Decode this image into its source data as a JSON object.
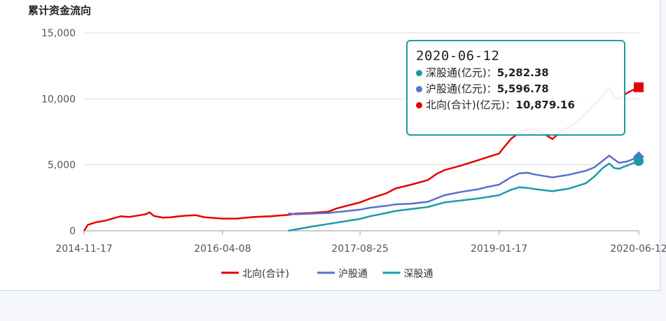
{
  "title": "累计资金流向",
  "tooltip": {
    "date": "2020-06-12",
    "rows": [
      {
        "label": "深股通(亿元)：",
        "value": "5,282.38",
        "color": "#1b9aaa"
      },
      {
        "label": "沪股通(亿元)：",
        "value": "5,596.78",
        "color": "#5b6fce"
      },
      {
        "label": "北向(合计)(亿元)：",
        "value": "10,879.16",
        "color": "#e50000"
      }
    ]
  },
  "colors": {
    "north": "#e50000",
    "sh": "#5b6fce",
    "sz": "#1b9aaa",
    "grid": "#dcdcdc",
    "axis": "#999999"
  },
  "chart_data": {
    "type": "line",
    "title": "累计资金流向",
    "x_ticks": [
      "2014-11-17",
      "2016-04-08",
      "2017-08-25",
      "2019-01-17",
      "2020-06-12"
    ],
    "y_ticks": [
      "0",
      "5,000",
      "10,000",
      "15,000"
    ],
    "ylim": [
      0,
      15000
    ],
    "xlim": [
      "2014-11-17",
      "2020-06-12"
    ],
    "grid": true,
    "legend_position": "bottom",
    "series": [
      {
        "name": "北向(合计)",
        "points": [
          [
            "2014-11-17",
            0
          ],
          [
            "2014-12-01",
            450
          ],
          [
            "2015-01-01",
            650
          ],
          [
            "2015-02-01",
            760
          ],
          [
            "2015-03-01",
            920
          ],
          [
            "2015-04-01",
            1100
          ],
          [
            "2015-05-01",
            1050
          ],
          [
            "2015-06-01",
            1150
          ],
          [
            "2015-07-01",
            1250
          ],
          [
            "2015-07-15",
            1400
          ],
          [
            "2015-08-01",
            1120
          ],
          [
            "2015-09-01",
            1000
          ],
          [
            "2015-10-01",
            1020
          ],
          [
            "2015-11-01",
            1100
          ],
          [
            "2015-12-01",
            1150
          ],
          [
            "2016-01-01",
            1180
          ],
          [
            "2016-02-01",
            1030
          ],
          [
            "2016-04-08",
            920
          ],
          [
            "2016-06-01",
            930
          ],
          [
            "2016-08-01",
            1050
          ],
          [
            "2016-10-01",
            1100
          ],
          [
            "2016-12-01",
            1200
          ],
          [
            "2017-01-01",
            1300
          ],
          [
            "2017-03-01",
            1350
          ],
          [
            "2017-05-01",
            1450
          ],
          [
            "2017-06-01",
            1700
          ],
          [
            "2017-08-25",
            2150
          ],
          [
            "2017-10-01",
            2450
          ],
          [
            "2017-12-01",
            2850
          ],
          [
            "2018-01-01",
            3200
          ],
          [
            "2018-03-01",
            3500
          ],
          [
            "2018-05-01",
            3850
          ],
          [
            "2018-06-01",
            4300
          ],
          [
            "2018-07-01",
            4600
          ],
          [
            "2018-09-01",
            4950
          ],
          [
            "2018-11-01",
            5350
          ],
          [
            "2018-12-01",
            5550
          ],
          [
            "2019-01-17",
            5850
          ],
          [
            "2019-02-01",
            6250
          ],
          [
            "2019-03-01",
            6950
          ],
          [
            "2019-04-01",
            7450
          ],
          [
            "2019-05-01",
            7700
          ],
          [
            "2019-06-01",
            7650
          ],
          [
            "2019-07-01",
            7350
          ],
          [
            "2019-08-01",
            6950
          ],
          [
            "2019-09-01",
            7550
          ],
          [
            "2019-10-01",
            7900
          ],
          [
            "2019-11-01",
            8250
          ],
          [
            "2019-12-01",
            8850
          ],
          [
            "2020-01-01",
            9550
          ],
          [
            "2020-02-01",
            10200
          ],
          [
            "2020-02-25",
            10850
          ],
          [
            "2020-03-15",
            10150
          ],
          [
            "2020-04-01",
            10000
          ],
          [
            "2020-05-01",
            10450
          ],
          [
            "2020-06-12",
            10879.16
          ]
        ]
      },
      {
        "name": "沪股通",
        "points": [
          [
            "2016-12-05",
            1320
          ],
          [
            "2017-01-01",
            1250
          ],
          [
            "2017-03-01",
            1300
          ],
          [
            "2017-05-01",
            1350
          ],
          [
            "2017-08-25",
            1600
          ],
          [
            "2017-10-01",
            1750
          ],
          [
            "2017-12-01",
            1900
          ],
          [
            "2018-01-01",
            2000
          ],
          [
            "2018-03-01",
            2050
          ],
          [
            "2018-05-01",
            2200
          ],
          [
            "2018-07-01",
            2700
          ],
          [
            "2018-09-01",
            2950
          ],
          [
            "2018-11-01",
            3150
          ],
          [
            "2018-12-01",
            3300
          ],
          [
            "2019-01-17",
            3500
          ],
          [
            "2019-03-01",
            4050
          ],
          [
            "2019-04-01",
            4350
          ],
          [
            "2019-05-01",
            4400
          ],
          [
            "2019-06-01",
            4250
          ],
          [
            "2019-08-01",
            4050
          ],
          [
            "2019-10-01",
            4250
          ],
          [
            "2019-12-01",
            4550
          ],
          [
            "2020-01-01",
            4800
          ],
          [
            "2020-02-01",
            5300
          ],
          [
            "2020-02-25",
            5700
          ],
          [
            "2020-03-15",
            5400
          ],
          [
            "2020-04-01",
            5150
          ],
          [
            "2020-05-01",
            5250
          ],
          [
            "2020-06-12",
            5596.78
          ]
        ]
      },
      {
        "name": "深股通",
        "points": [
          [
            "2016-12-05",
            0
          ],
          [
            "2017-03-01",
            320
          ],
          [
            "2017-05-01",
            520
          ],
          [
            "2017-08-25",
            900
          ],
          [
            "2017-10-01",
            1100
          ],
          [
            "2017-12-01",
            1350
          ],
          [
            "2018-01-01",
            1500
          ],
          [
            "2018-03-01",
            1650
          ],
          [
            "2018-05-01",
            1800
          ],
          [
            "2018-07-01",
            2150
          ],
          [
            "2018-09-01",
            2300
          ],
          [
            "2018-11-01",
            2450
          ],
          [
            "2019-01-17",
            2700
          ],
          [
            "2019-03-01",
            3100
          ],
          [
            "2019-04-01",
            3300
          ],
          [
            "2019-05-01",
            3250
          ],
          [
            "2019-06-01",
            3150
          ],
          [
            "2019-08-01",
            3000
          ],
          [
            "2019-10-01",
            3200
          ],
          [
            "2019-12-01",
            3600
          ],
          [
            "2020-01-01",
            4100
          ],
          [
            "2020-02-01",
            4750
          ],
          [
            "2020-02-25",
            5100
          ],
          [
            "2020-03-15",
            4750
          ],
          [
            "2020-04-01",
            4700
          ],
          [
            "2020-05-01",
            4950
          ],
          [
            "2020-06-12",
            5282.38
          ]
        ]
      }
    ],
    "legend": [
      "北向(合计)",
      "沪股通",
      "深股通"
    ]
  }
}
